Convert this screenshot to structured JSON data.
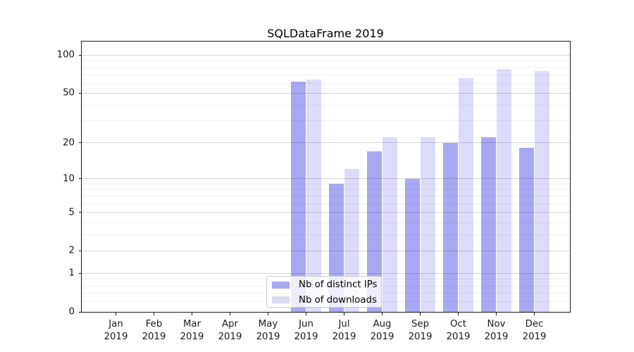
{
  "title": "SQLDataFrame 2019",
  "chart_data": {
    "type": "bar",
    "title": "SQLDataFrame 2019",
    "categories": [
      "Jan",
      "Feb",
      "Mar",
      "Apr",
      "May",
      "Jun",
      "Jul",
      "Aug",
      "Sep",
      "Oct",
      "Nov",
      "Dec"
    ],
    "year": "2019",
    "series": [
      {
        "name": "Nb of distinct IPs",
        "color": "#a8a8f2",
        "values": [
          0,
          0,
          0,
          0,
          0,
          62,
          9,
          17,
          10,
          20,
          22,
          18
        ]
      },
      {
        "name": "Nb of downloads",
        "color": "#dcdcfa",
        "values": [
          0,
          0,
          0,
          0,
          0,
          64,
          12,
          22,
          22,
          66,
          78,
          75
        ]
      }
    ],
    "yscale": "log1p",
    "yticks": [
      0,
      1,
      2,
      5,
      10,
      20,
      50,
      100
    ],
    "yticks_minor": [
      0.2,
      0.4,
      0.6,
      0.8,
      3,
      4,
      6,
      7,
      8,
      9,
      30,
      40,
      60,
      70,
      80,
      90
    ],
    "ylim": [
      0,
      130
    ],
    "grid": true,
    "legend_position": "lower-center"
  }
}
